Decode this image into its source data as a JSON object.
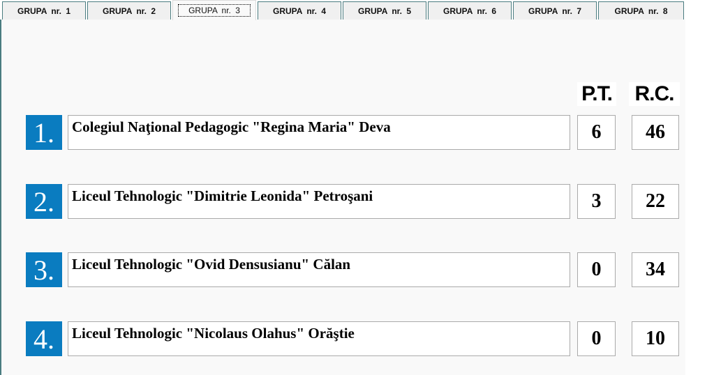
{
  "tabs": [
    "GRUPA  nr. 1",
    "GRUPA  nr. 2",
    "GRUPA  nr. 3",
    "GRUPA  nr. 4",
    "GRUPA  nr. 5",
    "GRUPA  nr. 6",
    "GRUPA  nr. 7",
    "GRUPA  nr. 8"
  ],
  "selected_tab": 2,
  "headers": {
    "pt": "P.T.",
    "rc": "R.C."
  },
  "rows": [
    {
      "rank": "1.",
      "name": "Colegiul Naţional Pedagogic \"Regina Maria\" Deva",
      "pt": "6",
      "rc": "46"
    },
    {
      "rank": "2.",
      "name": "Liceul Tehnologic \"Dimitrie Leonida\" Petroşani",
      "pt": "3",
      "rc": "22"
    },
    {
      "rank": "3.",
      "name": "Liceul Tehnologic \"Ovid Densusianu\" Călan",
      "pt": "0",
      "rc": "34"
    },
    {
      "rank": "4.",
      "name": "Liceul Tehnologic \"Nicolaus Olahus\" Orăştie",
      "pt": "0",
      "rc": "10"
    }
  ],
  "colors": {
    "rank_badge": "#0a7cc0",
    "tab_border": "#4a7c80"
  }
}
